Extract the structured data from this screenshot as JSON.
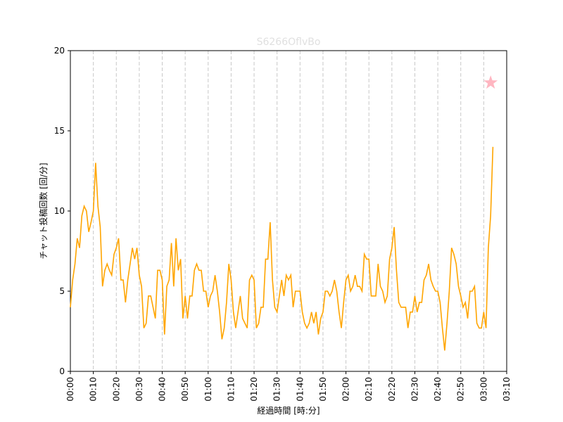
{
  "chart_data": {
    "type": "line",
    "title": "S6266OflvBo",
    "xlabel": "経過時間 [時:分]",
    "ylabel": "チャット投稿回数 [回/分]",
    "color": "#ffa500",
    "x": [
      0,
      1,
      2,
      3,
      4,
      5,
      6,
      7,
      8,
      9,
      10,
      11,
      12,
      13,
      14,
      15,
      16,
      17,
      18,
      19,
      20,
      21,
      22,
      23,
      24,
      25,
      26,
      27,
      28,
      29,
      30,
      31,
      32,
      33,
      34,
      35,
      36,
      37,
      38,
      39,
      40,
      41,
      42,
      43,
      44,
      45,
      46,
      47,
      48,
      49,
      50,
      51,
      52,
      53,
      54,
      55,
      56,
      57,
      58,
      59,
      60,
      61,
      62,
      63,
      64,
      65,
      66,
      67,
      68,
      69,
      70,
      71,
      72,
      73,
      74,
      75,
      76,
      77,
      78,
      79,
      80,
      81,
      82,
      83,
      84,
      85,
      86,
      87,
      88,
      89,
      90,
      91,
      92,
      93,
      94,
      95,
      96,
      97,
      98,
      99,
      100,
      101,
      102,
      103,
      104,
      105,
      106,
      107,
      108,
      109,
      110,
      111,
      112,
      113,
      114,
      115,
      116,
      117,
      118,
      119,
      120,
      121,
      122,
      123,
      124,
      125,
      126,
      127,
      128,
      129,
      130,
      131,
      132,
      133,
      134,
      135,
      136,
      137,
      138,
      139,
      140,
      141,
      142,
      143,
      144,
      145,
      146,
      147,
      148,
      149,
      150,
      151,
      152,
      153,
      154,
      155,
      156,
      157,
      158,
      159,
      160,
      161,
      162,
      163,
      164,
      165,
      166,
      167,
      168,
      169,
      170,
      171,
      172,
      173,
      174,
      175,
      176,
      177,
      178,
      179,
      180,
      181,
      182,
      183,
      184
    ],
    "values": [
      4,
      5.7,
      6.7,
      8.3,
      7.7,
      9.7,
      10.3,
      10,
      8.7,
      9.3,
      10,
      13,
      10.3,
      9,
      5.3,
      6.3,
      6.7,
      6.3,
      6,
      7.3,
      7.7,
      8.3,
      5.7,
      5.7,
      4.3,
      5.7,
      6.7,
      7.7,
      7,
      7.7,
      6,
      5.3,
      2.7,
      3,
      4.7,
      4.7,
      4,
      3.3,
      6.3,
      6.3,
      5.7,
      2.3,
      5.3,
      5.7,
      8,
      5.3,
      8.3,
      6.3,
      7,
      3.3,
      4.7,
      3.3,
      4.7,
      4.7,
      6.3,
      6.7,
      6.3,
      6.3,
      5,
      5,
      4,
      4.7,
      5,
      6,
      5,
      3.7,
      2,
      2.7,
      4.3,
      6.7,
      5.7,
      3.7,
      2.7,
      3.7,
      4.7,
      3.3,
      3,
      2.7,
      5.7,
      6,
      5.7,
      2.7,
      3,
      4,
      4,
      7,
      7,
      9.3,
      5.7,
      4,
      3.7,
      4.7,
      5.7,
      4.7,
      6,
      5.7,
      6,
      4,
      5,
      5,
      5,
      3.7,
      3,
      2.7,
      3,
      3.7,
      3,
      3.7,
      2.3,
      3.3,
      3.7,
      5,
      5,
      4.7,
      5,
      5.7,
      5,
      3.7,
      2.7,
      4.3,
      5.7,
      6,
      5,
      5.3,
      6,
      5.3,
      5.3,
      5,
      7.3,
      7,
      7,
      4.7,
      4.7,
      4.7,
      6.7,
      5.3,
      5,
      4.3,
      4.7,
      7,
      7.7,
      9,
      6.3,
      4.3,
      4,
      4,
      4,
      2.7,
      3.7,
      3.7,
      4.7,
      3.7,
      4.3,
      4.3,
      5.7,
      6,
      6.7,
      5.7,
      5.3,
      5,
      5,
      4.3,
      2.7,
      1.3,
      3,
      5,
      7.7,
      7.3,
      6.7,
      5.3,
      4.7,
      4,
      4.3,
      3.3,
      5,
      5,
      5.3,
      3,
      2.7,
      2.7,
      3.7,
      2.7,
      7.7,
      9.7,
      14
    ],
    "marker": {
      "x": 183,
      "y": 18,
      "color": "#ffb6c1"
    },
    "xlim": [
      0,
      190
    ],
    "xticks": [
      {
        "value": 0,
        "label": "00:00"
      },
      {
        "value": 10,
        "label": "00:10"
      },
      {
        "value": 20,
        "label": "00:20"
      },
      {
        "value": 30,
        "label": "00:30"
      },
      {
        "value": 40,
        "label": "00:40"
      },
      {
        "value": 50,
        "label": "00:50"
      },
      {
        "value": 60,
        "label": "01:00"
      },
      {
        "value": 70,
        "label": "01:10"
      },
      {
        "value": 80,
        "label": "01:20"
      },
      {
        "value": 90,
        "label": "01:30"
      },
      {
        "value": 100,
        "label": "01:40"
      },
      {
        "value": 110,
        "label": "01:50"
      },
      {
        "value": 120,
        "label": "02:00"
      },
      {
        "value": 130,
        "label": "02:10"
      },
      {
        "value": 140,
        "label": "02:20"
      },
      {
        "value": 150,
        "label": "02:30"
      },
      {
        "value": 160,
        "label": "02:40"
      },
      {
        "value": 170,
        "label": "02:50"
      },
      {
        "value": 180,
        "label": "03:00"
      },
      {
        "value": 190,
        "label": "03:10"
      }
    ],
    "ylim": [
      0,
      20
    ],
    "yticks": [
      0,
      5,
      10,
      15,
      20
    ],
    "xgrid": true
  }
}
